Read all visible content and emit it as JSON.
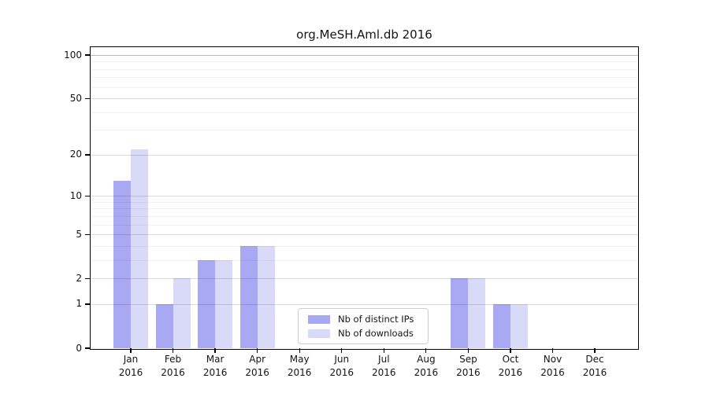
{
  "chart_data": {
    "type": "bar",
    "title": "org.MeSH.Aml.db 2016",
    "categories": [
      "Jan",
      "Feb",
      "Mar",
      "Apr",
      "May",
      "Jun",
      "Jul",
      "Aug",
      "Sep",
      "Oct",
      "Nov",
      "Dec"
    ],
    "year": "2016",
    "series": [
      {
        "name": "Nb of distinct IPs",
        "color": "#a9a9f3",
        "values": [
          13,
          1,
          3,
          4,
          0,
          0,
          0,
          0,
          2,
          1,
          0,
          0
        ]
      },
      {
        "name": "Nb of downloads",
        "color": "#d9d9f8",
        "values": [
          22,
          2,
          3,
          4,
          0,
          0,
          0,
          0,
          2,
          1,
          0,
          0
        ]
      }
    ],
    "xlabel": "",
    "ylabel": "",
    "yticks": [
      0,
      1,
      2,
      5,
      10,
      20,
      50,
      100
    ],
    "minor_gridlines": [
      3,
      4,
      6,
      7,
      8,
      9,
      30,
      40,
      60,
      70,
      80,
      90
    ],
    "yscale": "log1p",
    "ylim": [
      0,
      100
    ],
    "grid": true,
    "legend_position": "bottom-center",
    "colors": {
      "axis": "#000000",
      "grid_major": "rgba(0,0,0,0.14)",
      "grid_minor": "rgba(0,0,0,0.055)",
      "grid_top": "rgba(0,0,0,0.28)"
    }
  }
}
